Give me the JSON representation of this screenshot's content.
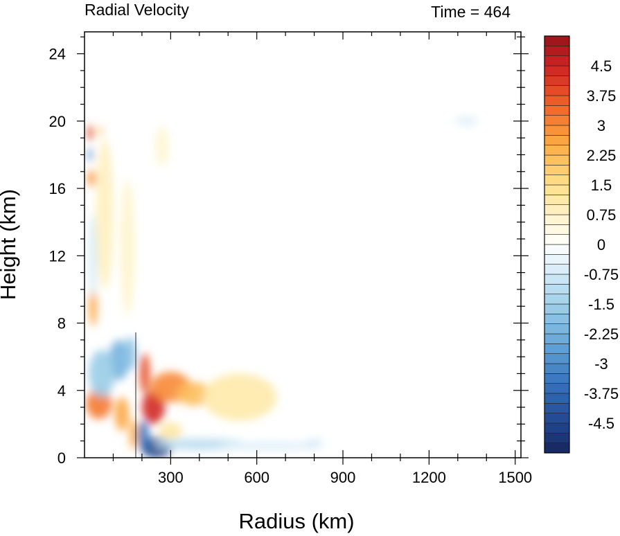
{
  "chart_data": {
    "type": "heatmap",
    "title_left": "Radial Velocity",
    "title_right": "Time = 464",
    "xlabel": "Radius (km)",
    "ylabel": "Height (km)",
    "xlim": [
      0,
      1520
    ],
    "ylim": [
      0,
      25.3
    ],
    "x_ticks": [
      300,
      600,
      900,
      1200,
      1500
    ],
    "x_tick_labels": [
      "300",
      "600",
      "900",
      "1200",
      "1500"
    ],
    "y_ticks": [
      0,
      4,
      8,
      12,
      16,
      20,
      24
    ],
    "y_tick_labels": [
      "0",
      "4",
      "8",
      "12",
      "16",
      "20",
      "24"
    ],
    "colorbar": {
      "levels": [
        -5.25,
        5.25
      ],
      "step": 0.25,
      "tick_labels": [
        "4.5",
        "3.75",
        "3",
        "2.25",
        "1.5",
        "0.75",
        "0",
        "-0.75",
        "-1.5",
        "-2.25",
        "-3",
        "-3.75",
        "-4.5"
      ],
      "tick_values": [
        4.5,
        3.75,
        3,
        2.25,
        1.5,
        0.75,
        0,
        -0.75,
        -1.5,
        -2.25,
        -3,
        -3.75,
        -4.5
      ]
    },
    "features": [
      {
        "x": 240,
        "y": 3.0,
        "rx": 40,
        "ry": 1.0,
        "v": 4.4
      },
      {
        "x": 210,
        "y": 5.0,
        "rx": 18,
        "ry": 1.2,
        "v": 3.8
      },
      {
        "x": 300,
        "y": 4.2,
        "rx": 70,
        "ry": 0.9,
        "v": 3.0
      },
      {
        "x": 380,
        "y": 3.8,
        "rx": 60,
        "ry": 0.7,
        "v": 2.2
      },
      {
        "x": 540,
        "y": 3.6,
        "rx": 130,
        "ry": 1.4,
        "v": 1.1
      },
      {
        "x": 50,
        "y": 3.2,
        "rx": 45,
        "ry": 0.9,
        "v": 3.2
      },
      {
        "x": 130,
        "y": 2.6,
        "rx": 25,
        "ry": 1.0,
        "v": 2.6
      },
      {
        "x": 170,
        "y": 1.4,
        "rx": 15,
        "ry": 0.9,
        "v": 2.4
      },
      {
        "x": 30,
        "y": 9.0,
        "rx": 14,
        "ry": 1.2,
        "v": 2.6
      },
      {
        "x": 25,
        "y": 16.6,
        "rx": 15,
        "ry": 0.5,
        "v": 2.8
      },
      {
        "x": 20,
        "y": 19.3,
        "rx": 10,
        "ry": 0.45,
        "v": 4.0
      },
      {
        "x": 55,
        "y": 19.4,
        "rx": 8,
        "ry": 0.3,
        "v": 2.0
      },
      {
        "x": 70,
        "y": 14.5,
        "rx": 30,
        "ry": 4.5,
        "v": 0.9
      },
      {
        "x": 150,
        "y": 12.5,
        "rx": 25,
        "ry": 4.0,
        "v": 0.7
      },
      {
        "x": 270,
        "y": 18.5,
        "rx": 25,
        "ry": 1.2,
        "v": 0.6
      },
      {
        "x": 250,
        "y": 0.6,
        "rx": 55,
        "ry": 0.6,
        "v": -4.6
      },
      {
        "x": 205,
        "y": 1.3,
        "rx": 20,
        "ry": 0.9,
        "v": -3.4
      },
      {
        "x": 120,
        "y": 5.8,
        "rx": 35,
        "ry": 1.2,
        "v": -2.2
      },
      {
        "x": 60,
        "y": 5.0,
        "rx": 45,
        "ry": 1.4,
        "v": -1.6
      },
      {
        "x": 160,
        "y": 6.2,
        "rx": 20,
        "ry": 1.0,
        "v": -1.8
      },
      {
        "x": 20,
        "y": 18.0,
        "rx": 8,
        "ry": 0.4,
        "v": -3.0
      },
      {
        "x": 30,
        "y": 12.0,
        "rx": 14,
        "ry": 2.5,
        "v": -0.7
      },
      {
        "x": 400,
        "y": 0.8,
        "rx": 160,
        "ry": 0.35,
        "v": -1.1
      },
      {
        "x": 650,
        "y": 0.7,
        "rx": 180,
        "ry": 0.25,
        "v": -0.6
      },
      {
        "x": 800,
        "y": 0.9,
        "rx": 30,
        "ry": 0.15,
        "v": -0.9
      },
      {
        "x": 1330,
        "y": 20.0,
        "rx": 40,
        "ry": 0.3,
        "v": -0.5
      },
      {
        "x": 300,
        "y": 1.6,
        "rx": 40,
        "ry": 0.5,
        "v": 1.2
      }
    ]
  }
}
